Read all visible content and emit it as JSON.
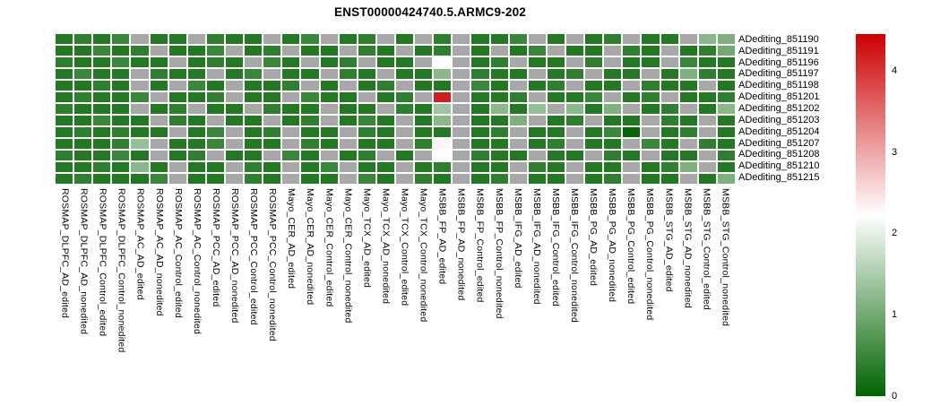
{
  "chart_data": {
    "type": "heatmap",
    "title": "ENST00000424740.5.ARMC9-202",
    "rows": [
      "ADediting_851190",
      "ADediting_851191",
      "ADediting_851196",
      "ADediting_851197",
      "ADediting_851198",
      "ADediting_851201",
      "ADediting_851202",
      "ADediting_851203",
      "ADediting_851204",
      "ADediting_851207",
      "ADediting_851208",
      "ADediting_851210",
      "ADediting_851215"
    ],
    "columns": [
      "ROSMAP_DLPFC_AD_edited",
      "ROSMAP_DLPFC_AD_nonedited",
      "ROSMAP_DLPFC_Control_edited",
      "ROSMAP_DLPFC_Control_nonedited",
      "ROSMAP_AC_AD_edited",
      "ROSMAP_AC_AD_nonedited",
      "ROSMAP_AC_Control_edited",
      "ROSMAP_AC_Control_nonedited",
      "ROSMAP_PCC_AD_edited",
      "ROSMAP_PCC_AD_nonedited",
      "ROSMAP_PCC_Control_edited",
      "ROSMAP_PCC_Control_nonedited",
      "Mayo_CER_AD_edited",
      "Mayo_CER_AD_nonedited",
      "Mayo_CER_Control_edited",
      "Mayo_CER_Control_nonedited",
      "Mayo_TCX_AD_edited",
      "Mayo_TCX_AD_nonedited",
      "Mayo_TCX_Control_edited",
      "Mayo_TCX_Control_nonedited",
      "MSBB_FP_AD_edited",
      "MSBB_FP_AD_nonedited",
      "MSBB_FP_Control_edited",
      "MSBB_FP_Control_nonedited",
      "MSBB_IFG_AD_edited",
      "MSBB_IFG_AD_nonedited",
      "MSBB_IFG_Control_edited",
      "MSBB_IFG_Control_nonedited",
      "MSBB_PG_AD_edited",
      "MSBB_PG_AD_nonedited",
      "MSBB_PG_Control_edited",
      "MSBB_PG_Control_nonedited",
      "MSBB_STG_AD_edited",
      "MSBB_STG_AD_nonedited",
      "MSBB_STG_Control_edited",
      "MSBB_STG_Control_nonedited"
    ],
    "matrix": [
      [
        0.3,
        0.4,
        0.3,
        0.5,
        null,
        0.3,
        0.3,
        null,
        0.4,
        0.3,
        0.3,
        null,
        0.3,
        0.5,
        null,
        0.3,
        0.4,
        null,
        0.3,
        null,
        0.4,
        null,
        0.3,
        0.3,
        0.5,
        null,
        0.3,
        null,
        0.3,
        0.4,
        null,
        0.3,
        0.3,
        null,
        1.2,
        1.1
      ],
      [
        0.3,
        0.3,
        0.5,
        0.3,
        0.4,
        null,
        0.3,
        0.3,
        0.5,
        null,
        0.3,
        0.4,
        null,
        0.3,
        0.3,
        null,
        0.4,
        0.3,
        null,
        0.3,
        0.4,
        null,
        0.3,
        null,
        0.3,
        0.5,
        null,
        0.3,
        0.3,
        null,
        0.4,
        0.3,
        null,
        0.3,
        0.4,
        1.0
      ],
      [
        0.4,
        0.3,
        0.3,
        0.5,
        0.3,
        0.3,
        null,
        0.3,
        0.4,
        0.3,
        null,
        0.5,
        0.3,
        null,
        0.3,
        0.4,
        null,
        0.3,
        0.3,
        null,
        2.25,
        null,
        0.3,
        0.4,
        null,
        0.3,
        0.3,
        null,
        0.4,
        null,
        0.3,
        0.3,
        null,
        0.5,
        0.3,
        0.3
      ],
      [
        0.3,
        0.5,
        0.3,
        0.3,
        null,
        0.4,
        0.3,
        0.3,
        null,
        0.3,
        0.5,
        null,
        0.3,
        0.3,
        null,
        0.4,
        0.3,
        null,
        0.3,
        0.3,
        1.2,
        null,
        0.4,
        0.3,
        0.3,
        null,
        0.3,
        0.4,
        null,
        0.3,
        0.3,
        null,
        0.3,
        1.1,
        0.4,
        0.3
      ],
      [
        0.3,
        0.3,
        0.4,
        0.3,
        null,
        0.3,
        null,
        0.5,
        0.3,
        null,
        0.3,
        0.3,
        0.4,
        null,
        0.3,
        null,
        0.3,
        0.4,
        null,
        0.3,
        0.3,
        null,
        0.5,
        0.3,
        null,
        0.3,
        0.4,
        null,
        0.3,
        0.3,
        null,
        0.4,
        0.3,
        0.3,
        null,
        0.3
      ],
      [
        0.3,
        0.4,
        0.3,
        0.3,
        0.5,
        null,
        0.3,
        0.3,
        0.4,
        null,
        0.3,
        0.3,
        null,
        0.5,
        0.3,
        0.3,
        null,
        0.3,
        0.4,
        null,
        4.2,
        null,
        0.3,
        0.3,
        0.4,
        null,
        0.3,
        0.3,
        0.5,
        null,
        0.3,
        0.4,
        null,
        0.3,
        0.3,
        0.4
      ],
      [
        0.4,
        0.3,
        0.3,
        0.3,
        null,
        0.3,
        0.4,
        null,
        0.3,
        0.3,
        null,
        0.4,
        0.3,
        0.3,
        null,
        0.3,
        0.3,
        null,
        0.4,
        0.3,
        1.4,
        null,
        0.3,
        1.2,
        0.3,
        1.3,
        null,
        1.2,
        0.3,
        1.1,
        null,
        0.3,
        0.4,
        null,
        0.3,
        1.2
      ],
      [
        0.3,
        0.3,
        0.5,
        0.3,
        0.3,
        null,
        0.4,
        0.3,
        null,
        0.3,
        0.3,
        null,
        0.3,
        0.4,
        null,
        0.3,
        0.5,
        0.3,
        null,
        0.3,
        1.2,
        null,
        0.3,
        0.3,
        1.1,
        null,
        0.3,
        0.4,
        null,
        0.3,
        0.3,
        null,
        0.4,
        0.3,
        null,
        0.3
      ],
      [
        0.3,
        0.4,
        0.3,
        0.4,
        0.3,
        0.3,
        null,
        0.3,
        0.5,
        null,
        0.3,
        0.4,
        null,
        0.3,
        0.3,
        null,
        0.4,
        0.3,
        null,
        0.3,
        0.3,
        null,
        0.3,
        0.4,
        null,
        0.3,
        0.3,
        null,
        0.3,
        0.5,
        0.05,
        null,
        0.3,
        0.4,
        null,
        0.3
      ],
      [
        0.3,
        0.3,
        0.3,
        0.4,
        1.3,
        null,
        0.3,
        0.3,
        0.5,
        null,
        0.3,
        0.3,
        null,
        0.4,
        0.3,
        null,
        0.3,
        0.3,
        null,
        0.4,
        2.3,
        null,
        0.3,
        0.3,
        null,
        0.3,
        0.4,
        null,
        0.3,
        0.3,
        null,
        0.5,
        0.3,
        null,
        0.4,
        0.3
      ],
      [
        0.4,
        0.3,
        0.3,
        0.5,
        0.3,
        null,
        0.3,
        0.4,
        null,
        0.3,
        0.3,
        null,
        0.5,
        0.3,
        null,
        0.3,
        0.4,
        null,
        0.3,
        null,
        2.2,
        null,
        0.4,
        0.3,
        0.3,
        null,
        0.3,
        0.3,
        null,
        0.4,
        0.3,
        null,
        0.3,
        0.3,
        null,
        0.4
      ],
      [
        0.3,
        0.3,
        0.4,
        0.3,
        1.2,
        0.3,
        null,
        0.3,
        0.3,
        null,
        0.4,
        0.3,
        null,
        0.3,
        0.5,
        null,
        0.3,
        0.3,
        null,
        0.3,
        0.4,
        null,
        0.3,
        0.3,
        null,
        0.4,
        0.3,
        null,
        0.3,
        0.3,
        null,
        0.3,
        0.4,
        1.1,
        null,
        0.3
      ],
      [
        0.3,
        0.4,
        0.3,
        0.3,
        0.3,
        0.5,
        null,
        0.3,
        0.3,
        null,
        0.4,
        0.3,
        null,
        0.3,
        0.3,
        null,
        0.5,
        0.3,
        null,
        0.4,
        0.3,
        null,
        0.3,
        0.4,
        null,
        0.3,
        0.3,
        null,
        0.3,
        0.4,
        null,
        0.3,
        0.3,
        null,
        0.3,
        1.1
      ]
    ],
    "na_color": "#a8a8a8",
    "colormap": {
      "type": "diverging",
      "stops": [
        {
          "value": 0,
          "color": "#006400"
        },
        {
          "value": 2.225,
          "color": "#ffffff"
        },
        {
          "value": 4.45,
          "color": "#cc0000"
        }
      ]
    },
    "colorbar": {
      "position": "right",
      "min": 0,
      "max": 4.45,
      "ticks": [
        4,
        3,
        2,
        1,
        0
      ]
    },
    "legend_position": "right",
    "grid": false
  }
}
